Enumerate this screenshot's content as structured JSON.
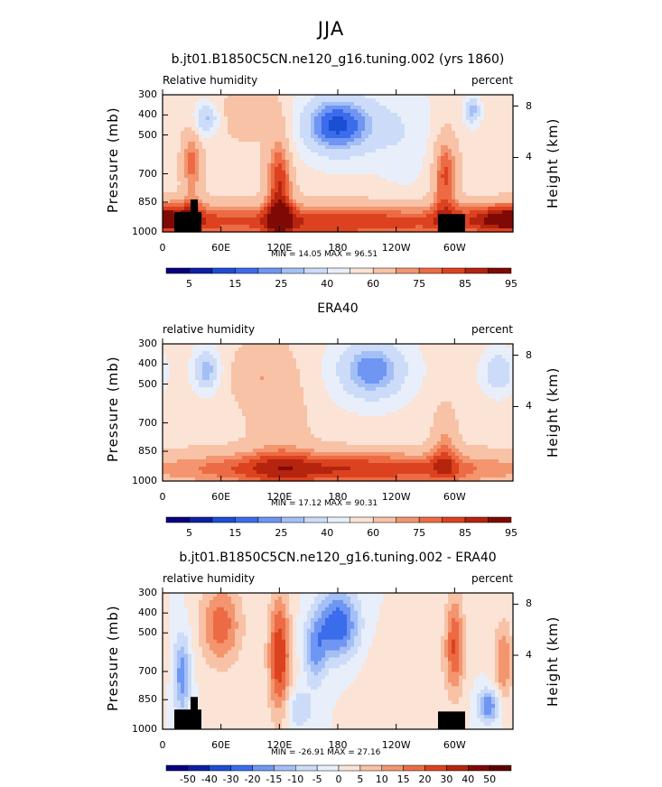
{
  "page_title": "JJA",
  "panels": [
    {
      "title": "b.jt01.B1850C5CN.ne120_g16.tuning.002 (yrs 1860)",
      "left_label": "Relative humidity",
      "right_label": "percent",
      "ylabel_left": "Pressure (mb)",
      "ylabel_right": "Height (km)",
      "min_max": "MIN =   14.05   MAX =   96.51",
      "colorbar_labels": [
        "5",
        "15",
        "25",
        "40",
        "60",
        "75",
        "85",
        "95"
      ]
    },
    {
      "title": "ERA40",
      "left_label": "relative humidity",
      "right_label": "percent",
      "ylabel_left": "Pressure (mb)",
      "ylabel_right": "Height (km)",
      "min_max": "MIN =   17.12   MAX =   90.31",
      "colorbar_labels": [
        "5",
        "15",
        "25",
        "40",
        "60",
        "75",
        "85",
        "95"
      ]
    },
    {
      "title": "b.jt01.B1850C5CN.ne120_g16.tuning.002 - ERA40",
      "left_label": "relative humidity",
      "right_label": "percent",
      "ylabel_left": "Pressure (mb)",
      "ylabel_right": "Height (km)",
      "min_max": "MIN = -26.91   MAX =   27.16",
      "colorbar_labels": [
        "-50",
        "-40",
        "-30",
        "-20",
        "-15",
        "-10",
        "-5",
        "0",
        "5",
        "10",
        "15",
        "20",
        "30",
        "40",
        "50"
      ]
    }
  ],
  "axes": {
    "x_ticks": [
      "0",
      "60E",
      "120E",
      "180",
      "120W",
      "60W"
    ],
    "y_ticks_pressure": [
      "300",
      "400",
      "500",
      "700",
      "850",
      "1000"
    ],
    "y_ticks_height": [
      "8",
      "4"
    ]
  },
  "colors": {
    "abs_scale": [
      "#08007f",
      "#0d1fa3",
      "#1c4ed4",
      "#3a6cec",
      "#6e96f2",
      "#a4bff6",
      "#ccdcf8",
      "#e8effa",
      "#fbe3d6",
      "#f8c2a6",
      "#f3956f",
      "#ec6b44",
      "#dc421f",
      "#b4240e",
      "#7f0a05"
    ],
    "diff_scale": [
      "#08007f",
      "#0d1fa3",
      "#1c4ed4",
      "#3a6cec",
      "#6e96f2",
      "#a4bff6",
      "#ccdcf8",
      "#e8effa",
      "#fbe3d6",
      "#f8c2a6",
      "#f3956f",
      "#ec6b44",
      "#dc421f",
      "#b4240e",
      "#7f0a05",
      "#5a0300"
    ]
  },
  "chart_data": [
    {
      "type": "heatmap",
      "title": "b.jt01.B1850C5CN.ne120_g16.tuning.002 (yrs 1860)",
      "subtitle_left": "Relative humidity",
      "subtitle_right": "percent",
      "x_ticks": [
        "0",
        "60E",
        "120E",
        "180",
        "120W",
        "60W"
      ],
      "ylabel": "Pressure (mb)",
      "ylabel_right": "Height (km)",
      "y_ticks": [
        300,
        400,
        500,
        700,
        850,
        1000
      ],
      "y_right_ticks": [
        8,
        4
      ],
      "min": 14.05,
      "max": 96.51,
      "levels": [
        5,
        10,
        15,
        20,
        25,
        30,
        40,
        50,
        60,
        70,
        75,
        80,
        85,
        90,
        95
      ],
      "features": [
        {
          "kind": "min",
          "lon": 180,
          "p": 450,
          "value": 15
        },
        {
          "kind": "min",
          "lon": 45,
          "p": 420,
          "value": 25
        },
        {
          "kind": "min",
          "lon": 318,
          "p": 380,
          "value": 25
        },
        {
          "kind": "max",
          "lon": 120,
          "p": 750,
          "value": 85
        },
        {
          "kind": "max",
          "lon": 290,
          "p": 700,
          "value": 80
        },
        {
          "kind": "max",
          "lon": 30,
          "p": 650,
          "value": 80
        }
      ]
    },
    {
      "type": "heatmap",
      "title": "ERA40",
      "subtitle_left": "relative humidity",
      "subtitle_right": "percent",
      "x_ticks": [
        "0",
        "60E",
        "120E",
        "180",
        "120W",
        "60W"
      ],
      "ylabel": "Pressure (mb)",
      "ylabel_right": "Height (km)",
      "y_ticks": [
        300,
        400,
        500,
        700,
        850,
        1000
      ],
      "y_right_ticks": [
        8,
        4
      ],
      "min": 17.12,
      "max": 90.31,
      "levels": [
        5,
        10,
        15,
        20,
        25,
        30,
        40,
        50,
        60,
        70,
        75,
        80,
        85,
        90,
        95
      ],
      "features": [
        {
          "kind": "min",
          "lon": 215,
          "p": 430,
          "value": 20
        },
        {
          "kind": "min",
          "lon": 45,
          "p": 430,
          "value": 25
        },
        {
          "kind": "min",
          "lon": 345,
          "p": 440,
          "value": 30
        },
        {
          "kind": "max",
          "lon": 120,
          "p": 930,
          "value": 85
        }
      ]
    },
    {
      "type": "heatmap",
      "title": "b.jt01.B1850C5CN.ne120_g16.tuning.002 - ERA40",
      "subtitle_left": "relative humidity",
      "subtitle_right": "percent",
      "x_ticks": [
        "0",
        "60E",
        "120E",
        "180",
        "120W",
        "60W"
      ],
      "ylabel": "Pressure (mb)",
      "ylabel_right": "Height (km)",
      "y_ticks": [
        300,
        400,
        500,
        700,
        850,
        1000
      ],
      "y_right_ticks": [
        8,
        4
      ],
      "min": -26.91,
      "max": 27.16,
      "levels": [
        -50,
        -40,
        -30,
        -20,
        -15,
        -10,
        -5,
        0,
        5,
        10,
        15,
        20,
        30,
        40,
        50
      ],
      "features": [
        {
          "kind": "min",
          "lon": 180,
          "p": 450,
          "value": -25
        },
        {
          "kind": "min",
          "lon": 155,
          "p": 620,
          "value": -15
        },
        {
          "kind": "min",
          "lon": 20,
          "p": 720,
          "value": -20
        },
        {
          "kind": "min",
          "lon": 335,
          "p": 880,
          "value": -20
        },
        {
          "kind": "max",
          "lon": 120,
          "p": 600,
          "value": 25
        },
        {
          "kind": "max",
          "lon": 60,
          "p": 450,
          "value": 20
        },
        {
          "kind": "max",
          "lon": 300,
          "p": 560,
          "value": 20
        },
        {
          "kind": "max",
          "lon": 350,
          "p": 650,
          "value": 15
        }
      ]
    }
  ]
}
